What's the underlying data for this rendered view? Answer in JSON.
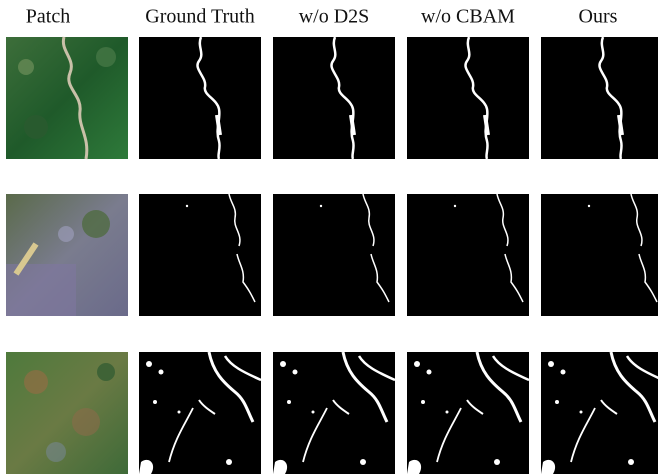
{
  "columns": [
    "Patch",
    "Ground Truth",
    "w/o D2S",
    "w/o CBAM",
    "Ours"
  ]
}
